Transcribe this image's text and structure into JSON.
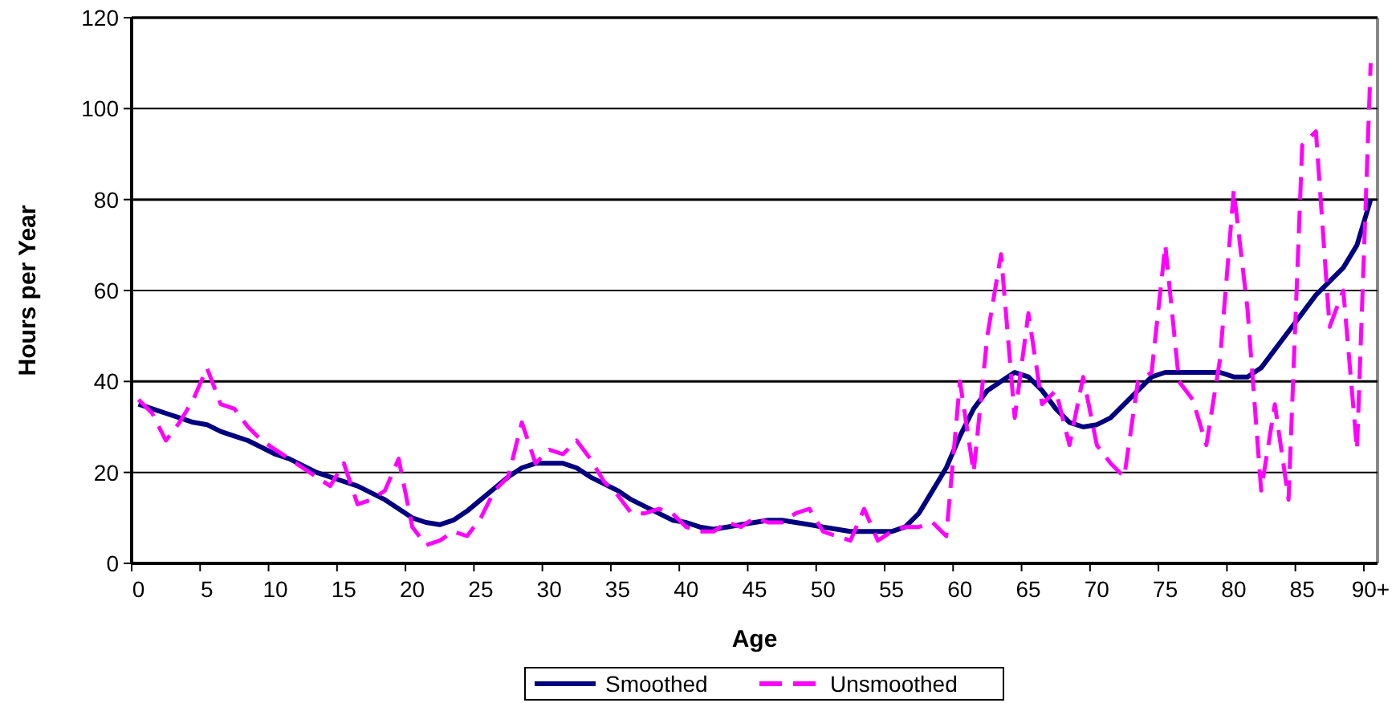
{
  "chart_data": {
    "type": "line",
    "xlabel": "Age",
    "ylabel": "Hours per Year",
    "categories": [
      "0",
      null,
      null,
      null,
      null,
      "5",
      null,
      null,
      null,
      null,
      "10",
      null,
      null,
      null,
      null,
      "15",
      null,
      null,
      null,
      null,
      "20",
      null,
      null,
      null,
      null,
      "25",
      null,
      null,
      null,
      null,
      "30",
      null,
      null,
      null,
      null,
      "35",
      null,
      null,
      null,
      null,
      "40",
      null,
      null,
      null,
      null,
      "45",
      null,
      null,
      null,
      null,
      "50",
      null,
      null,
      null,
      null,
      "55",
      null,
      null,
      null,
      null,
      "60",
      null,
      null,
      null,
      null,
      "65",
      null,
      null,
      null,
      null,
      "70",
      null,
      null,
      null,
      null,
      "75",
      null,
      null,
      null,
      null,
      "80",
      null,
      null,
      null,
      null,
      "85",
      null,
      null,
      null,
      null,
      "90+"
    ],
    "series": [
      {
        "name": "Smoothed",
        "color": "#000080",
        "line_style": "solid",
        "values": [
          35,
          34,
          33,
          32,
          31,
          30.5,
          29,
          28,
          27,
          25.5,
          24,
          23,
          21.5,
          20,
          19,
          18,
          17,
          15.5,
          14,
          12,
          10,
          9,
          8.5,
          9.5,
          11.5,
          14,
          16.5,
          19,
          21,
          22,
          22,
          22,
          21,
          19,
          17.5,
          16,
          14,
          12.5,
          11,
          9.5,
          9,
          8,
          7.5,
          8,
          8.5,
          9,
          9.5,
          9.5,
          9,
          8.5,
          8,
          7.5,
          7,
          7,
          7,
          7,
          8,
          11,
          16,
          21,
          28,
          34,
          38,
          40,
          42,
          41,
          38,
          34,
          31,
          30,
          30.5,
          32,
          35,
          38,
          41,
          42,
          42,
          42,
          42,
          42,
          41,
          41,
          43,
          47,
          51,
          55,
          59,
          62,
          65,
          70,
          80
        ]
      },
      {
        "name": "Unsmoothed",
        "color": "#ff00ff",
        "line_style": "dashed",
        "values": [
          36,
          33,
          27,
          31,
          36,
          43,
          35,
          34,
          30,
          27,
          25,
          23,
          21,
          19,
          17,
          22,
          13,
          14,
          16,
          23,
          8,
          4,
          5,
          7,
          6,
          10,
          16,
          19,
          31,
          22,
          25,
          24,
          27,
          23,
          18,
          15,
          11,
          11,
          12,
          11,
          8,
          7,
          7,
          9,
          8,
          10,
          9,
          9,
          11,
          12,
          7,
          6,
          5,
          12,
          5,
          7,
          8,
          8,
          9,
          6,
          40,
          20,
          50,
          68,
          32,
          55,
          35,
          38,
          26,
          41,
          26,
          22,
          19,
          40,
          42,
          70,
          40,
          36,
          26,
          45,
          82,
          56,
          16,
          35,
          14,
          92,
          95,
          52,
          60,
          25,
          110
        ]
      }
    ],
    "ylim": [
      0,
      120
    ],
    "yticks": [
      0,
      20,
      40,
      60,
      80,
      100,
      120
    ],
    "grid": "y",
    "legend": "bottom",
    "marker": "none"
  }
}
